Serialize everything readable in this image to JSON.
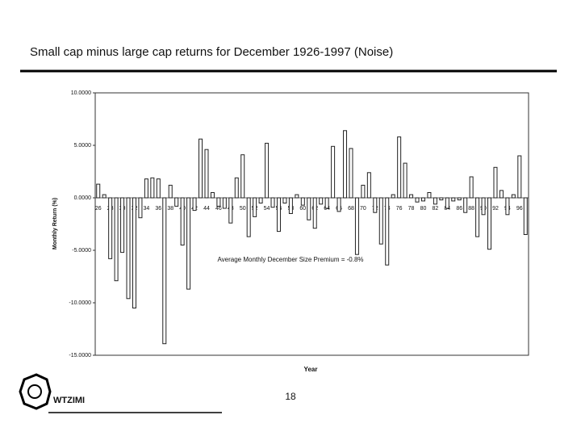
{
  "chart_data": {
    "type": "bar",
    "title": "Small cap minus large cap returns for December 1926-1997 (Noise)",
    "x_label": "Year",
    "y_label": "Monthly Return (%)",
    "annotation": "Average Monthly December Size Premium = -0.8%",
    "categories": [
      "26",
      null,
      "28",
      null,
      "30",
      null,
      "32",
      null,
      "34",
      null,
      "36",
      null,
      "38",
      null,
      "40",
      null,
      "42",
      null,
      "44",
      null,
      "46",
      null,
      "48",
      null,
      "50",
      null,
      "52",
      null,
      "54",
      null,
      "56",
      null,
      "58",
      null,
      "60",
      null,
      "62",
      null,
      "64",
      null,
      "66",
      null,
      "68",
      null,
      "70",
      null,
      "72",
      null,
      "74",
      null,
      "76",
      null,
      "78",
      null,
      "80",
      null,
      "82",
      null,
      "84",
      null,
      "86",
      null,
      "88",
      null,
      "90",
      null,
      "92",
      null,
      "94",
      null,
      "96",
      null
    ],
    "values": [
      1.3,
      0.3,
      -5.8,
      -7.9,
      -5.2,
      -9.6,
      -10.5,
      -1.9,
      1.8,
      1.9,
      1.8,
      -13.9,
      1.2,
      -0.8,
      -4.5,
      -8.7,
      -1.2,
      5.6,
      4.6,
      0.5,
      -0.8,
      -1.0,
      -2.4,
      1.9,
      4.1,
      -3.7,
      -1.8,
      -0.5,
      5.2,
      -0.9,
      -3.2,
      -0.5,
      -1.5,
      0.3,
      -0.7,
      -2.1,
      -2.9,
      -0.6,
      -1.0,
      4.9,
      -1.3,
      6.4,
      4.7,
      -5.4,
      1.2,
      2.4,
      -1.4,
      -4.4,
      -6.4,
      0.3,
      5.8,
      3.3,
      0.3,
      -0.4,
      -0.3,
      0.5,
      -0.6,
      -0.2,
      -1.0,
      -0.3,
      -0.2,
      -1.4,
      2.0,
      -3.7,
      -1.6,
      -4.9,
      2.9,
      0.7,
      -1.6,
      0.3,
      4.0,
      -3.5
    ],
    "color": "#222222",
    "ylim": [
      -15,
      10
    ],
    "yticks": [
      {
        "value": -15,
        "label": "-15.0000"
      },
      {
        "value": -10,
        "label": "-10.0000"
      },
      {
        "value": -5,
        "label": "-5.0000"
      },
      {
        "value": 0,
        "label": "0.0000"
      },
      {
        "value": 5,
        "label": "5.0000"
      },
      {
        "value": 10,
        "label": "10.0000"
      }
    ],
    "grid": false
  },
  "footer": {
    "logo": "WTZIMI",
    "page_number": "18"
  }
}
